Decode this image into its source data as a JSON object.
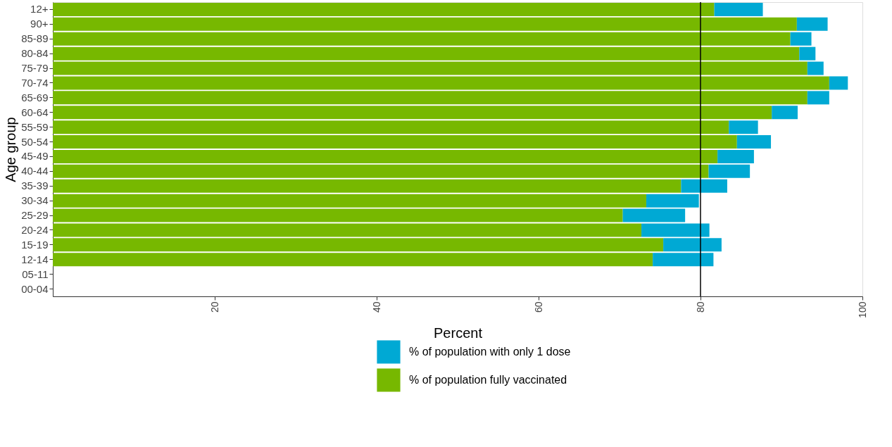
{
  "chart_data": {
    "type": "bar",
    "orientation": "horizontal",
    "stacked": true,
    "xlabel": "Percent",
    "ylabel": "Age group",
    "categories": [
      "12+",
      "90+",
      "85-89",
      "80-84",
      "75-79",
      "70-74",
      "65-69",
      "60-64",
      "55-59",
      "50-54",
      "45-49",
      "40-44",
      "35-39",
      "30-34",
      "25-29",
      "20-24",
      "15-19",
      "12-14",
      "05-11",
      "00-04"
    ],
    "series": [
      {
        "name": "% of population fully vaccinated",
        "color": "#77b800",
        "values": [
          81.7,
          91.9,
          91.1,
          92.2,
          93.2,
          95.9,
          93.2,
          88.8,
          83.5,
          84.5,
          82.1,
          81.0,
          77.6,
          73.3,
          70.4,
          72.7,
          75.4,
          74.1,
          null,
          null
        ]
      },
      {
        "name": "% of population with only 1 dose",
        "color": "#00a9d4",
        "values": [
          6.0,
          3.8,
          2.6,
          2.0,
          2.0,
          2.3,
          2.7,
          3.2,
          3.6,
          4.2,
          4.5,
          5.1,
          5.7,
          6.5,
          7.7,
          8.4,
          7.2,
          7.5,
          null,
          null
        ]
      }
    ],
    "xlim": [
      0,
      100
    ],
    "xticks": [
      20,
      40,
      60,
      80,
      100
    ],
    "grid": false,
    "legend": "bottom",
    "ref_lines": [
      {
        "axis": "x",
        "value": 80,
        "color": "#000000"
      }
    ]
  }
}
